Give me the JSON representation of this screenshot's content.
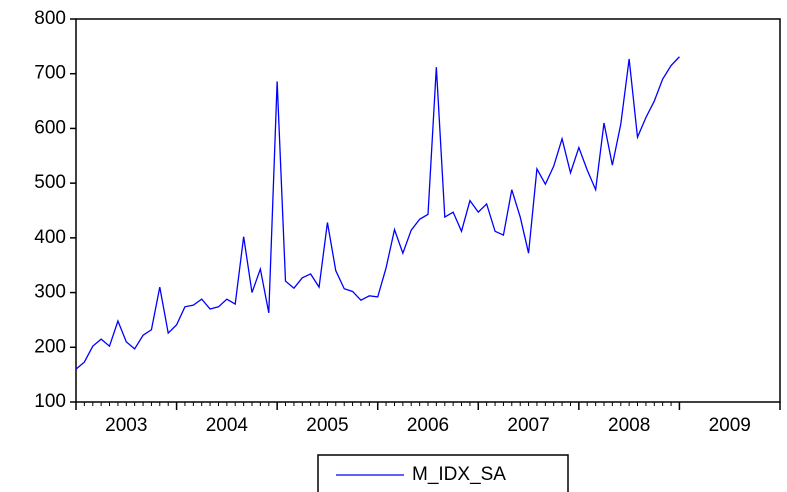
{
  "chart_data": {
    "type": "line",
    "x": [
      2003,
      2003.083,
      2003.167,
      2003.25,
      2003.333,
      2003.417,
      2003.5,
      2003.583,
      2003.667,
      2003.75,
      2003.833,
      2003.917,
      2004,
      2004.083,
      2004.167,
      2004.25,
      2004.333,
      2004.417,
      2004.5,
      2004.583,
      2004.667,
      2004.75,
      2004.833,
      2004.917,
      2005,
      2005.083,
      2005.167,
      2005.25,
      2005.333,
      2005.417,
      2005.5,
      2005.583,
      2005.667,
      2005.75,
      2005.833,
      2005.917,
      2006,
      2006.083,
      2006.167,
      2006.25,
      2006.333,
      2006.417,
      2006.5,
      2006.583,
      2006.667,
      2006.75,
      2006.833,
      2006.917,
      2007,
      2007.083,
      2007.167,
      2007.25,
      2007.333,
      2007.417,
      2007.5,
      2007.583,
      2007.667,
      2007.75,
      2007.833,
      2007.917,
      2008,
      2008.083,
      2008.167,
      2008.25,
      2008.333,
      2008.417,
      2008.5,
      2008.583,
      2008.667,
      2008.75,
      2008.833,
      2008.917,
      2009
    ],
    "series": [
      {
        "name": "M_IDX_SA",
        "color": "#0000ff",
        "values": [
          160,
          173,
          202,
          215,
          202,
          248,
          210,
          197,
          222,
          232,
          310,
          226,
          241,
          274,
          277,
          288,
          270,
          274,
          288,
          279,
          402,
          300,
          343,
          263,
          686,
          321,
          308,
          327,
          334,
          310,
          428,
          340,
          307,
          302,
          286,
          294,
          292,
          345,
          415,
          372,
          414,
          434,
          443,
          712,
          438,
          447,
          412,
          468,
          447,
          462,
          412,
          405,
          488,
          438,
          372,
          526,
          498,
          531,
          581,
          519,
          565,
          524,
          488,
          610,
          533,
          608,
          727,
          584,
          620,
          650,
          690,
          715,
          731
        ]
      }
    ],
    "xlim": [
      2003,
      2010
    ],
    "xticks": [
      2003,
      2004,
      2005,
      2006,
      2007,
      2008,
      2009,
      2010
    ],
    "xlabels": [
      {
        "value": 2003.5,
        "label": "2003"
      },
      {
        "value": 2004.5,
        "label": "2004"
      },
      {
        "value": 2005.5,
        "label": "2005"
      },
      {
        "value": 2006.5,
        "label": "2006"
      },
      {
        "value": 2007.5,
        "label": "2007"
      },
      {
        "value": 2008.5,
        "label": "2008"
      },
      {
        "value": 2009.5,
        "label": "2009"
      }
    ],
    "ylim": [
      100,
      800
    ],
    "yticks": [
      100,
      200,
      300,
      400,
      500,
      600,
      700,
      800
    ],
    "grid": false,
    "legend": "bottom"
  }
}
